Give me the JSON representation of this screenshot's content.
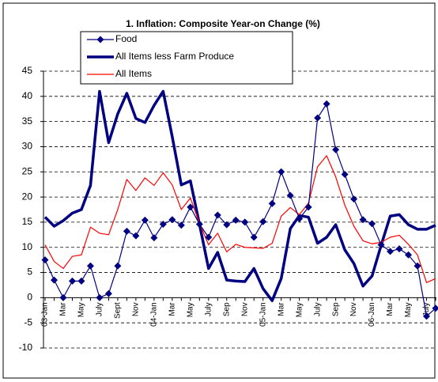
{
  "chart_data": {
    "type": "line",
    "title": "1. Inflation: Composite Year-on Change (%)",
    "categories": [
      "03-Jan",
      null,
      "Mar",
      null,
      "May",
      null,
      "July",
      null,
      "Sept",
      null,
      "Nov",
      null,
      "04-Jan",
      null,
      "Mar",
      null,
      "May",
      null,
      "July",
      null,
      "Sep",
      null,
      "Nov",
      null,
      "05-Jan",
      null,
      "Mar",
      null,
      "May",
      null,
      "July",
      null,
      "Sep",
      null,
      "Nov",
      null,
      "06-Jan",
      null,
      "Mar",
      null,
      "May",
      null,
      "July",
      null
    ],
    "series": [
      {
        "name": "Food",
        "color": "#000080",
        "marker": "diamond",
        "width": 1.2,
        "values": [
          7.5,
          3.5,
          0,
          3.3,
          3.3,
          6.3,
          0,
          0.8,
          6.3,
          13.2,
          12.3,
          15.4,
          11.9,
          14.6,
          15.5,
          14.4,
          18,
          14.6,
          12,
          16.4,
          14.5,
          15.4,
          15,
          12,
          15.1,
          18.7,
          25,
          20.3,
          15.7,
          18,
          35.7,
          38.5,
          29.4,
          24.5,
          19.6,
          15.5,
          14.7,
          10.5,
          9.2,
          9.7,
          8.5,
          6.3,
          -3.7,
          -2.1
        ]
      },
      {
        "name": "All Items less Farm Produce",
        "color": "#000080",
        "width": 3.5,
        "values": [
          16,
          14.2,
          15.3,
          16.8,
          17.5,
          22.3,
          41,
          30.8,
          36.5,
          40.6,
          35.6,
          34.8,
          38.2,
          41,
          32,
          22.4,
          23.2,
          14.6,
          5.8,
          9,
          3.5,
          3.3,
          3.2,
          5.8,
          1.8,
          -0.6,
          3.8,
          13.7,
          16.3,
          16,
          10.8,
          12,
          14.5,
          9.5,
          6.8,
          2.3,
          4.3,
          10.4,
          16.2,
          16.5,
          14.5,
          13.6,
          13.6,
          14.4
        ]
      },
      {
        "name": "All Items",
        "color": "#ff0000",
        "width": 1.2,
        "values": [
          10.5,
          7.2,
          5.8,
          8.2,
          8.5,
          14,
          12.8,
          12.5,
          17.5,
          23.5,
          21.3,
          23.8,
          22.3,
          24.8,
          22.4,
          17.5,
          19.8,
          14.8,
          10.5,
          12.8,
          9.1,
          10.6,
          10,
          9.9,
          9.8,
          10.8,
          16.2,
          17.9,
          16.5,
          18.8,
          26,
          28.2,
          24,
          18.4,
          14.2,
          11.3,
          10.7,
          11,
          12,
          12.4,
          10.6,
          8.5,
          3,
          3.8
        ]
      }
    ],
    "ylim": [
      -10,
      45
    ],
    "yticks": [
      -10,
      -5,
      0,
      5,
      10,
      15,
      20,
      25,
      30,
      35,
      40,
      45
    ],
    "grid": true,
    "legend": "top"
  }
}
